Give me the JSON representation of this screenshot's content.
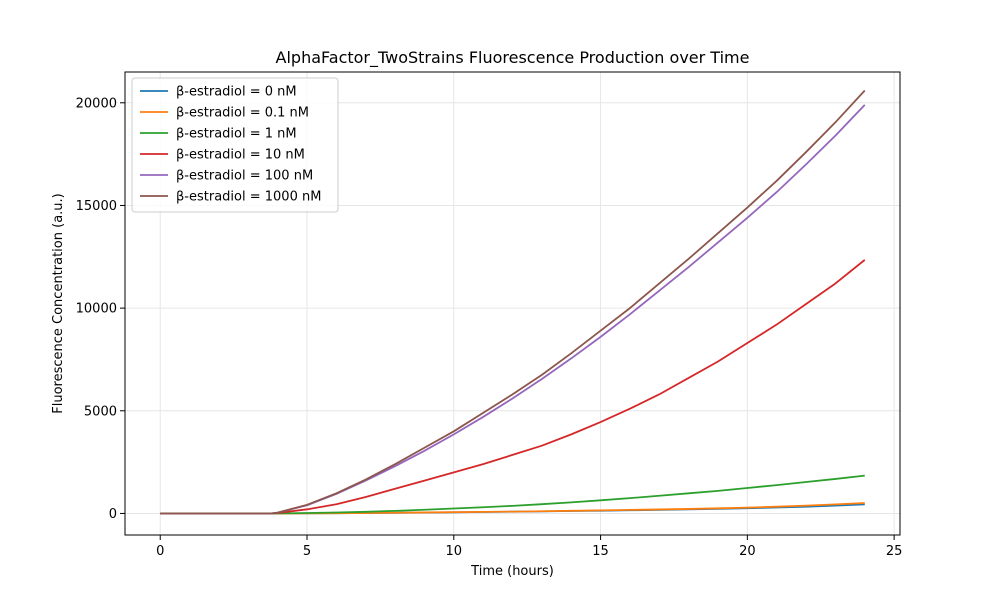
{
  "chart_data": {
    "type": "line",
    "title": "AlphaFactor_TwoStrains Fluorescence Production over Time",
    "xlabel": "Time (hours)",
    "ylabel": "Fluorescence Concentration (a.u.)",
    "xlim": [
      -1.2,
      25.2
    ],
    "ylim": [
      -1050,
      21500
    ],
    "xticks": [
      0,
      5,
      10,
      15,
      20,
      25
    ],
    "yticks": [
      0,
      5000,
      10000,
      15000,
      20000
    ],
    "grid": true,
    "legend_position": "upper-left",
    "x": [
      0,
      2,
      3.8,
      4,
      5,
      6,
      7,
      8,
      9,
      10,
      11,
      12,
      13,
      14,
      15,
      16,
      17,
      18,
      19,
      20,
      21,
      22,
      23,
      24
    ],
    "series": [
      {
        "name": "β-estradiol = 0 nM",
        "color": "#1f77b4",
        "values": [
          0,
          0,
          0,
          0,
          5,
          12,
          20,
          30,
          42,
          55,
          70,
          85,
          100,
          118,
          135,
          155,
          175,
          200,
          225,
          255,
          290,
          330,
          380,
          440
        ]
      },
      {
        "name": "β-estradiol = 0.1 nM",
        "color": "#ff7f0e",
        "values": [
          0,
          0,
          0,
          0,
          5,
          12,
          22,
          35,
          48,
          60,
          75,
          90,
          108,
          128,
          150,
          172,
          195,
          220,
          250,
          285,
          330,
          380,
          440,
          510
        ]
      },
      {
        "name": "β-estradiol = 1 nM",
        "color": "#2ca02c",
        "values": [
          0,
          0,
          0,
          5,
          20,
          45,
          80,
          125,
          180,
          240,
          300,
          370,
          450,
          540,
          640,
          745,
          860,
          980,
          1100,
          1240,
          1380,
          1530,
          1680,
          1840
        ]
      },
      {
        "name": "β-estradiol = 10 nM",
        "color": "#d62728",
        "values": [
          0,
          0,
          0,
          20,
          200,
          450,
          800,
          1200,
          1600,
          2000,
          2400,
          2850,
          3300,
          3850,
          4450,
          5100,
          5800,
          6600,
          7400,
          8300,
          9200,
          10200,
          11200,
          12350
        ]
      },
      {
        "name": "β-estradiol = 100 nM",
        "color": "#9467bd",
        "values": [
          0,
          0,
          0,
          40,
          400,
          950,
          1600,
          2300,
          3050,
          3850,
          4700,
          5600,
          6550,
          7550,
          8600,
          9700,
          10850,
          12000,
          13200,
          14400,
          15650,
          17000,
          18400,
          19900
        ]
      },
      {
        "name": "β-estradiol = 1000 nM",
        "color": "#8c564b",
        "values": [
          0,
          0,
          0,
          40,
          420,
          980,
          1650,
          2400,
          3200,
          4000,
          4900,
          5800,
          6750,
          7800,
          8900,
          10000,
          11200,
          12400,
          13650,
          14900,
          16200,
          17600,
          19050,
          20600
        ]
      }
    ]
  }
}
